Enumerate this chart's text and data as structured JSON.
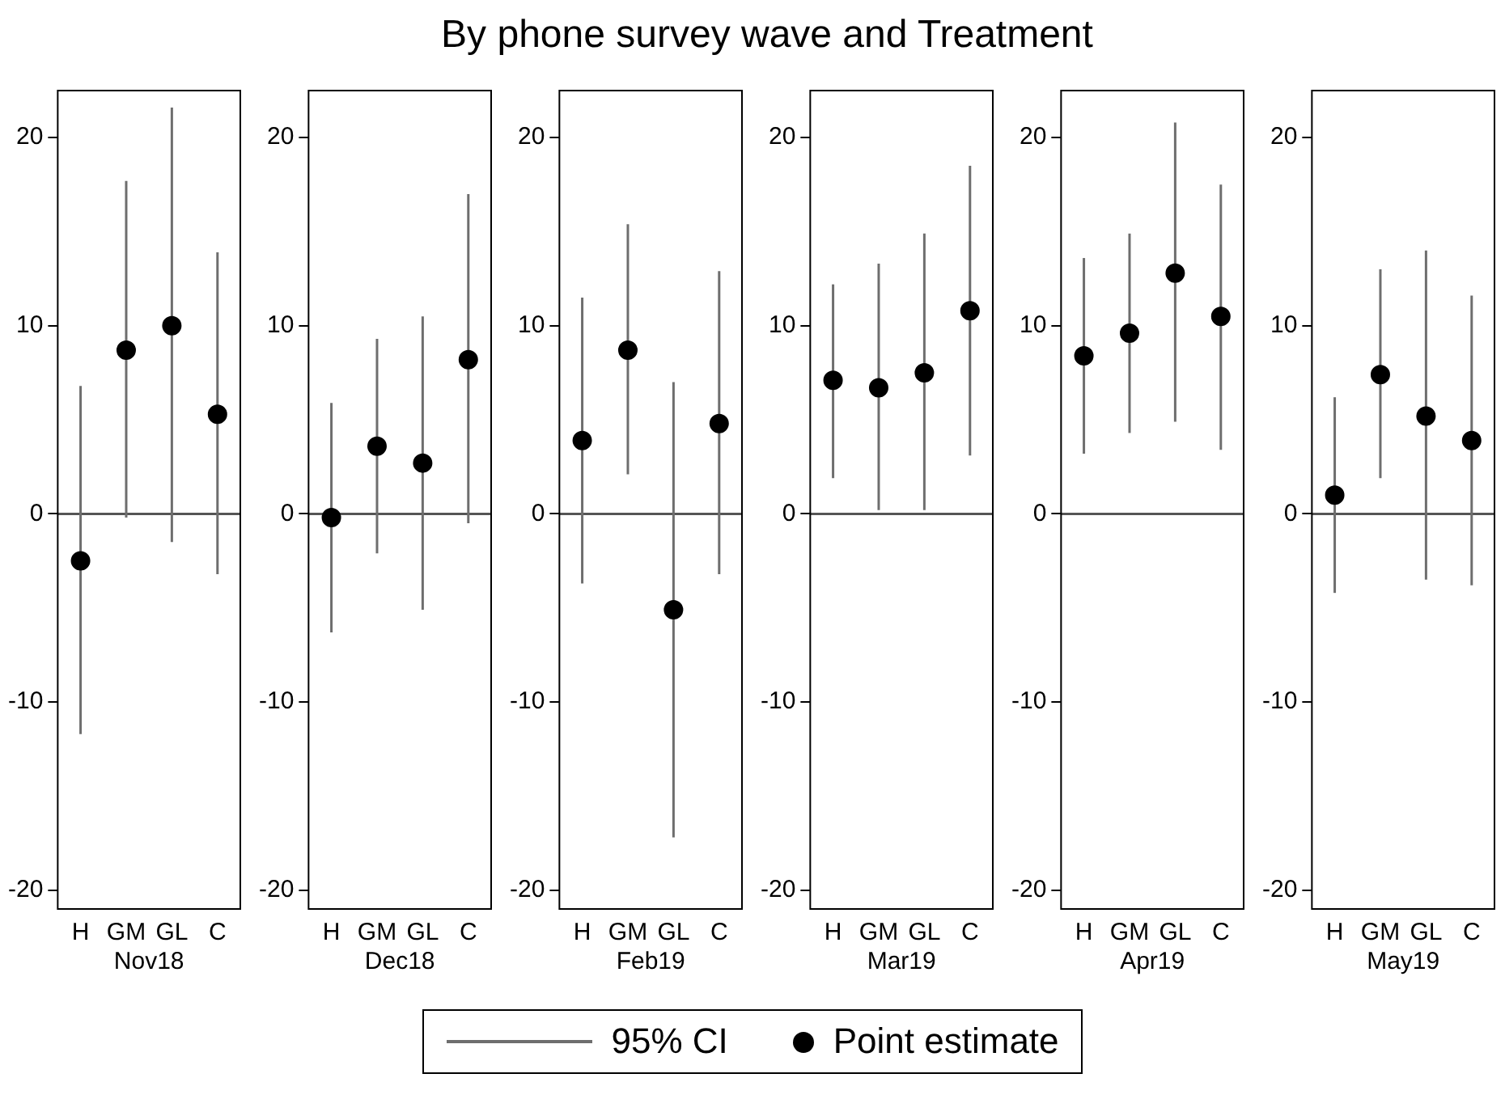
{
  "chart_data": [
    {
      "type": "scatter",
      "xlabel": "Nov18",
      "categories": [
        "H",
        "GM",
        "GL",
        "C"
      ],
      "ylim": [
        -21,
        22.5
      ],
      "yticks": [
        -20,
        -10,
        0,
        10,
        20
      ],
      "grid": false,
      "legend": "bottom",
      "marker": "circle",
      "annotations": [
        "95% CI"
      ],
      "ref_lines": [
        {
          "axis": "y",
          "value": 0,
          "color": "#555555"
        }
      ],
      "series": [
        {
          "name": "Point estimate",
          "color": "#000000",
          "values": [
            -2.5,
            8.7,
            10.0,
            5.3
          ],
          "errors": [
            [
              -11.7,
              6.8
            ],
            [
              -0.2,
              17.7
            ],
            [
              -1.5,
              21.6
            ],
            [
              -3.2,
              13.9
            ]
          ]
        }
      ]
    },
    {
      "type": "scatter",
      "xlabel": "Dec18",
      "categories": [
        "H",
        "GM",
        "GL",
        "C"
      ],
      "ylim": [
        -21,
        22.5
      ],
      "yticks": [
        -20,
        -10,
        0,
        10,
        20
      ],
      "grid": false,
      "marker": "circle",
      "ref_lines": [
        {
          "axis": "y",
          "value": 0,
          "color": "#555555"
        }
      ],
      "series": [
        {
          "color": "#000000",
          "values": [
            -0.2,
            3.6,
            2.7,
            8.2
          ],
          "errors": [
            [
              -6.3,
              5.9
            ],
            [
              -2.1,
              9.3
            ],
            [
              -5.1,
              10.5
            ],
            [
              -0.5,
              17.0
            ]
          ]
        }
      ]
    },
    {
      "type": "scatter",
      "xlabel": "Feb19",
      "categories": [
        "H",
        "GM",
        "GL",
        "C"
      ],
      "ylim": [
        -21,
        22.5
      ],
      "yticks": [
        -20,
        -10,
        0,
        10,
        20
      ],
      "grid": false,
      "marker": "circle",
      "ref_lines": [
        {
          "axis": "y",
          "value": 0,
          "color": "#555555"
        }
      ],
      "series": [
        {
          "color": "#000000",
          "values": [
            3.9,
            8.7,
            -5.1,
            4.8
          ],
          "errors": [
            [
              -3.7,
              11.5
            ],
            [
              2.1,
              15.4
            ],
            [
              -17.2,
              7.0
            ],
            [
              -3.2,
              12.9
            ]
          ]
        }
      ]
    },
    {
      "type": "scatter",
      "title": "By phone survey wave and Treatment",
      "xlabel": "Mar19",
      "categories": [
        "H",
        "GM",
        "GL",
        "C"
      ],
      "ylim": [
        -21,
        22.5
      ],
      "yticks": [
        -20,
        -10,
        0,
        10,
        20
      ],
      "grid": false,
      "marker": "circle",
      "ref_lines": [
        {
          "axis": "y",
          "value": 0,
          "color": "#555555"
        }
      ],
      "series": [
        {
          "color": "#000000",
          "values": [
            7.1,
            6.7,
            7.5,
            10.8
          ],
          "errors": [
            [
              1.9,
              12.2
            ],
            [
              0.2,
              13.3
            ],
            [
              0.2,
              14.9
            ],
            [
              3.1,
              18.5
            ]
          ]
        }
      ]
    },
    {
      "type": "scatter",
      "xlabel": "Apr19",
      "categories": [
        "H",
        "GM",
        "GL",
        "C"
      ],
      "ylim": [
        -21,
        22.5
      ],
      "yticks": [
        -20,
        -10,
        0,
        10,
        20
      ],
      "grid": false,
      "marker": "circle",
      "ref_lines": [
        {
          "axis": "y",
          "value": 0,
          "color": "#555555"
        }
      ],
      "series": [
        {
          "color": "#000000",
          "values": [
            8.4,
            9.6,
            12.8,
            10.5
          ],
          "errors": [
            [
              3.2,
              13.6
            ],
            [
              4.3,
              14.9
            ],
            [
              4.9,
              20.8
            ],
            [
              3.4,
              17.5
            ]
          ]
        }
      ]
    },
    {
      "type": "scatter",
      "xlabel": "May19",
      "categories": [
        "H",
        "GM",
        "GL",
        "C"
      ],
      "ylim": [
        -21,
        22.5
      ],
      "yticks": [
        -20,
        -10,
        0,
        10,
        20
      ],
      "grid": false,
      "marker": "circle",
      "ref_lines": [
        {
          "axis": "y",
          "value": 0,
          "color": "#555555"
        }
      ],
      "series": [
        {
          "color": "#000000",
          "values": [
            1.0,
            7.4,
            5.2,
            3.9
          ],
          "errors": [
            [
              -4.2,
              6.2
            ],
            [
              1.9,
              13.0
            ],
            [
              -3.5,
              14.0
            ],
            [
              -3.8,
              11.6
            ]
          ]
        }
      ]
    }
  ]
}
